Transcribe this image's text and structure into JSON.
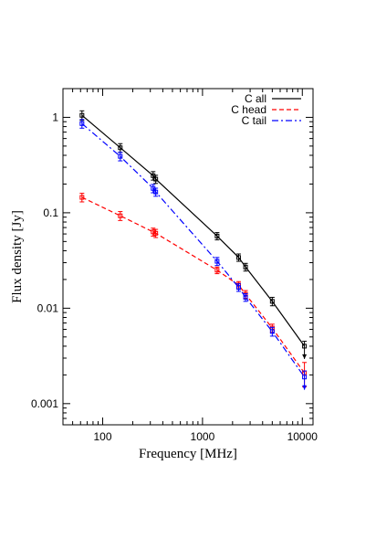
{
  "chart_data": {
    "type": "line",
    "xlabel": "Frequency [MHz]",
    "ylabel": "Flux density [Jy]",
    "xscale": "log",
    "yscale": "log",
    "xlim": [
      40,
      12800
    ],
    "ylim": [
      0.0006,
      2.0
    ],
    "x_ticks": [
      100,
      1000,
      10000
    ],
    "x_tick_labels": [
      "100",
      "1000",
      "10000"
    ],
    "y_ticks": [
      0.001,
      0.01,
      0.1,
      1
    ],
    "y_tick_labels": [
      "0.001",
      "0.01",
      "0.1",
      "1"
    ],
    "legend_position": "top-right",
    "series": [
      {
        "name": "C all",
        "color": "#000000",
        "dash": "solid",
        "x": [
          62,
          150,
          320,
          340,
          1400,
          2300,
          2700,
          5000,
          10500
        ],
        "y": [
          1.05,
          0.48,
          0.245,
          0.225,
          0.057,
          0.034,
          0.027,
          0.0118,
          0.004
        ],
        "yerr": [
          0.12,
          0.05,
          0.025,
          0.022,
          0.005,
          0.003,
          0.0025,
          0.0012,
          0.0005
        ],
        "upper_limit_last": true
      },
      {
        "name": "C head",
        "color": "#ff0000",
        "dash": "dashed",
        "x": [
          62,
          150,
          320,
          340,
          1400,
          2300,
          2700,
          5000,
          10500
        ],
        "y": [
          0.145,
          0.093,
          0.063,
          0.061,
          0.025,
          0.0175,
          0.014,
          0.0062,
          0.0021
        ],
        "yerr": [
          0.015,
          0.01,
          0.006,
          0.006,
          0.002,
          0.0015,
          0.0013,
          0.0006,
          0.0006
        ],
        "upper_limit_last": false
      },
      {
        "name": "C tail",
        "color": "#0000ff",
        "dash": "dashdot",
        "x": [
          62,
          150,
          320,
          340,
          1400,
          2300,
          2700,
          5000,
          10500
        ],
        "y": [
          0.86,
          0.39,
          0.18,
          0.165,
          0.031,
          0.0165,
          0.013,
          0.0057,
          0.0019
        ],
        "yerr": [
          0.09,
          0.04,
          0.018,
          0.016,
          0.003,
          0.0015,
          0.0012,
          0.0006,
          0.0003
        ],
        "upper_limit_last": true
      }
    ]
  }
}
